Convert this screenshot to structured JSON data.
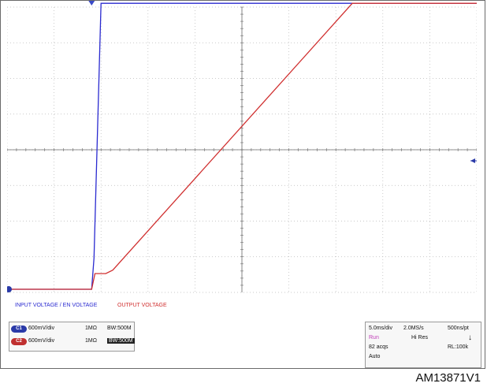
{
  "legend": {
    "input_label": "INPUT VOLTAGE / EN VOLTAGE",
    "output_label": "OUTPUT VOLTAGE"
  },
  "colors": {
    "input_trace": "#2a2ad0",
    "output_trace": "#d03030",
    "grid": "#b8b8b8",
    "axis": "#6a6a6a",
    "ch1_badge": "#2a3aa8",
    "ch2_badge": "#c03030",
    "status_run": "#c03cb8"
  },
  "channels": [
    {
      "badge": "C1",
      "scale": "600mV/div",
      "impedance": "1MΩ",
      "bandwidth": "BW:500M",
      "bw_inverted": false
    },
    {
      "badge": "C2",
      "scale": "600mV/div",
      "impedance": "1MΩ",
      "bandwidth": "BW:500M",
      "bw_inverted": true
    }
  ],
  "acquisition": {
    "timebase": "5.0ms/div",
    "sample_rate": "2.0MS/s",
    "resolution_per_pt": "500ns/pt",
    "status": "Run",
    "mode": "Hi Res",
    "acqs": "82 acqs",
    "record_length": "RL:100k",
    "trigger": "Auto"
  },
  "figure_id": "AM13871V1",
  "chart_data": {
    "type": "line",
    "x_unit_per_div": "5.0ms/div",
    "y_unit_per_div": "600mV/div",
    "grid": true,
    "xlim": [
      0,
      10
    ],
    "ylim": [
      0,
      8
    ],
    "series": [
      {
        "name": "INPUT VOLTAGE / EN VOLTAGE",
        "x": [
          0,
          1.8,
          1.85,
          2.0,
          10
        ],
        "y": [
          0.0,
          0.0,
          0.9,
          8.2,
          8.2
        ]
      },
      {
        "name": "OUTPUT VOLTAGE",
        "x": [
          0,
          1.8,
          1.87,
          2.1,
          2.25,
          7.35,
          10
        ],
        "y": [
          0.0,
          0.0,
          0.45,
          0.45,
          0.55,
          8.2,
          8.2
        ]
      }
    ]
  }
}
